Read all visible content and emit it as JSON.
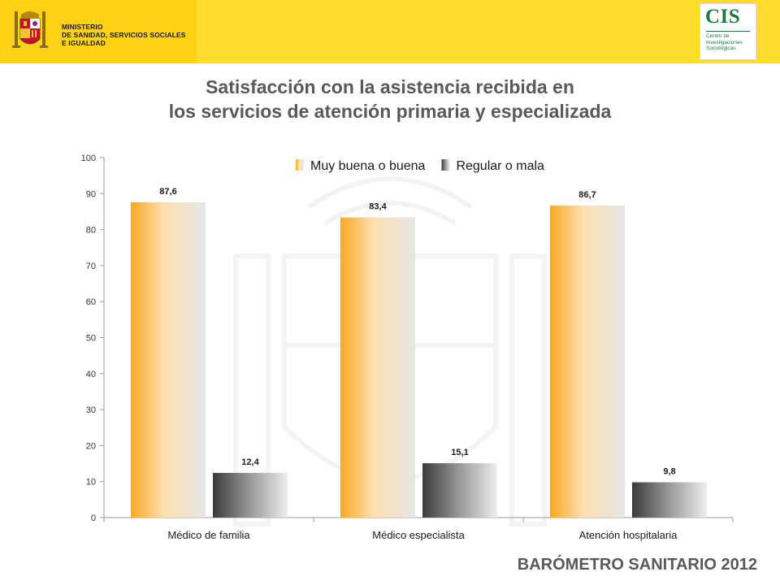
{
  "header": {
    "ministry_lines": [
      "MINISTERIO",
      "DE SANIDAD, SERVICIOS SOCIALES",
      "E IGUALDAD"
    ],
    "cis_logo": "CIS",
    "cis_name_lines": [
      "Centro de",
      "Investigaciones",
      "Sociológicas"
    ]
  },
  "title_lines": [
    "Satisfacción con la asistencia recibida en",
    "los servicios de atención primaria y especializada"
  ],
  "footer": "BARÓMETRO SANITARIO 2012",
  "colors": {
    "brand_yellow": "#fcd116",
    "series_1_gradient": [
      "#f9a825",
      "#fde0b0",
      "#e6e6e6"
    ],
    "series_2_gradient": [
      "#3a3a3a",
      "#9a9a9a",
      "#ededed"
    ],
    "title_gray": "#595959",
    "cis_green": "#1e7a3c"
  },
  "icons": [
    "spain-coat-of-arms-icon",
    "cis-logo"
  ],
  "chart_data": {
    "type": "bar",
    "categories": [
      "Médico de familia",
      "Médico especialista",
      "Atención hospitalaria"
    ],
    "series": [
      {
        "name": "Muy buena o buena",
        "values": [
          87.6,
          83.4,
          86.7
        ],
        "labels": [
          "87,6",
          "83,4",
          "86,7"
        ]
      },
      {
        "name": "Regular o mala",
        "values": [
          12.4,
          15.1,
          9.8
        ],
        "labels": [
          "12,4",
          "15,1",
          "9,8"
        ]
      }
    ],
    "ylim": [
      0,
      100
    ],
    "yticks": [
      "0",
      "10",
      "20",
      "30",
      "40",
      "50",
      "60",
      "70",
      "80",
      "90",
      "100"
    ],
    "legend_position": "top",
    "grid": false
  }
}
